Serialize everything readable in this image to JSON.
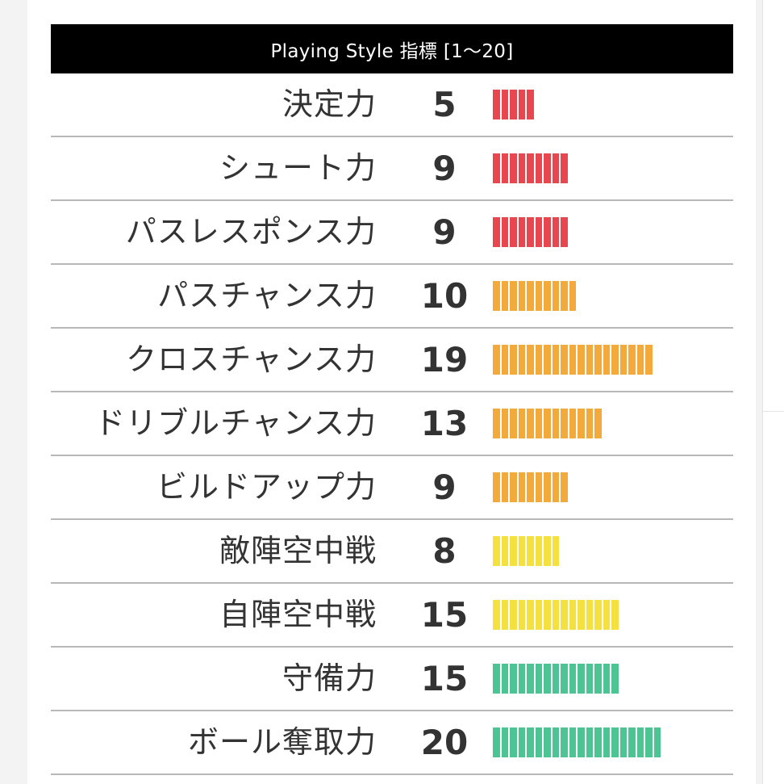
{
  "header": {
    "title": "Playing Style 指標 [1〜20]"
  },
  "colors": {
    "red": "#e8474f",
    "orange": "#f3aa3b",
    "yellow": "#f4e13f",
    "green": "#4cc494"
  },
  "rows": [
    {
      "label": "決定力",
      "value": "5",
      "level": 5,
      "color": "#e8474f"
    },
    {
      "label": "シュート力",
      "value": "9",
      "level": 9,
      "color": "#e8474f"
    },
    {
      "label": "パスレスポンス力",
      "value": "9",
      "level": 9,
      "color": "#e8474f"
    },
    {
      "label": "パスチャンス力",
      "value": "10",
      "level": 10,
      "color": "#f3aa3b"
    },
    {
      "label": "クロスチャンス力",
      "value": "19",
      "level": 19,
      "color": "#f3aa3b"
    },
    {
      "label": "ドリブルチャンス力",
      "value": "13",
      "level": 13,
      "color": "#f3aa3b"
    },
    {
      "label": "ビルドアップ力",
      "value": "9",
      "level": 9,
      "color": "#f3aa3b"
    },
    {
      "label": "敵陣空中戦",
      "value": "8",
      "level": 8,
      "color": "#f4e13f"
    },
    {
      "label": "自陣空中戦",
      "value": "15",
      "level": 15,
      "color": "#f4e13f"
    },
    {
      "label": "守備力",
      "value": "15",
      "level": 15,
      "color": "#4cc494"
    },
    {
      "label": "ボール奪取力",
      "value": "20",
      "level": 20,
      "color": "#4cc494"
    }
  ]
}
